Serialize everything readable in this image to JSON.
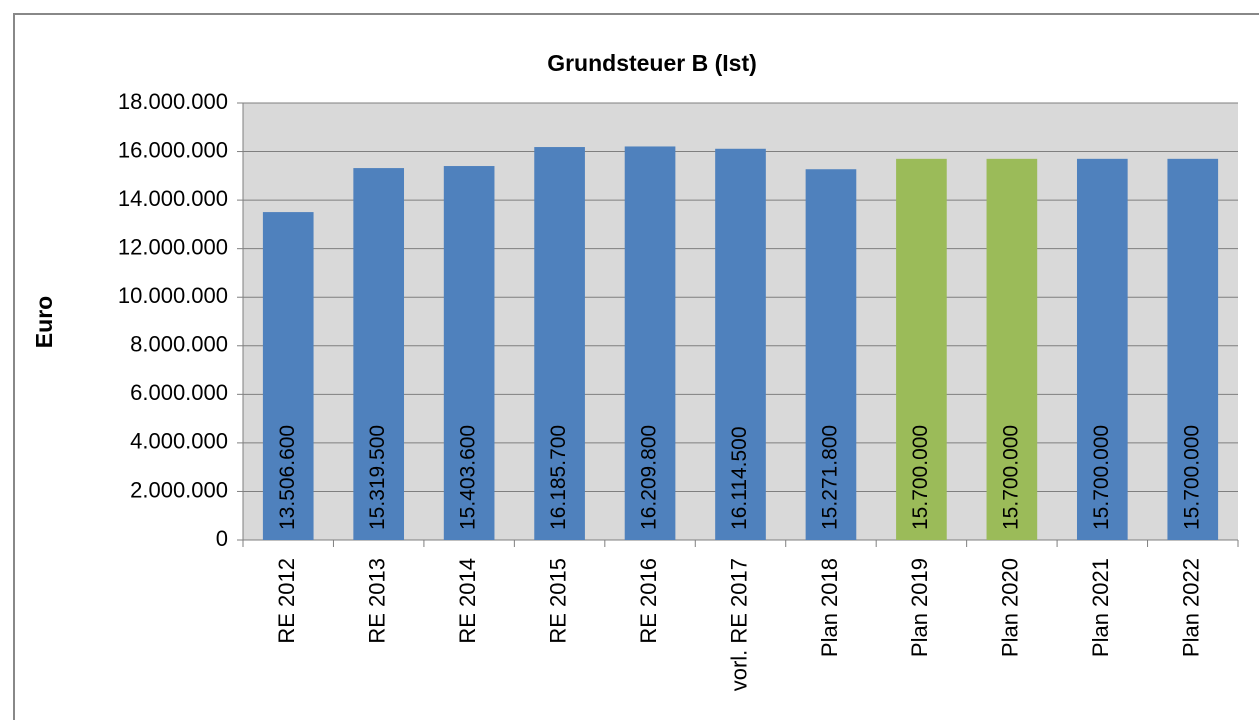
{
  "chart_data": {
    "type": "bar",
    "title": "Grundsteuer B (Ist)",
    "y_label": "Euro",
    "categories": [
      "RE 2012",
      "RE 2013",
      "RE 2014",
      "RE 2015",
      "RE 2016",
      "vorl. RE 2017",
      "Plan 2018",
      "Plan 2019",
      "Plan 2020",
      "Plan 2021",
      "Plan 2022"
    ],
    "values": [
      13506600,
      15319500,
      15403600,
      16185700,
      16209800,
      16114500,
      15271800,
      15700000,
      15700000,
      15700000,
      15700000
    ],
    "value_labels": [
      "13.506.600",
      "15.319.500",
      "15.403.600",
      "16.185.700",
      "16.209.800",
      "16.114.500",
      "15.271.800",
      "15.700.000",
      "15.700.000",
      "15.700.000",
      "15.700.000"
    ],
    "colors": [
      "#4f81bd",
      "#4f81bd",
      "#4f81bd",
      "#4f81bd",
      "#4f81bd",
      "#4f81bd",
      "#4f81bd",
      "#9bbb59",
      "#9bbb59",
      "#4f81bd",
      "#4f81bd"
    ],
    "ylim": [
      0,
      18000000
    ],
    "yticks": [
      0,
      {
        "value": 2000000,
        "label": "2.000.000"
      },
      {
        "value": 4000000,
        "label": "4.000.000"
      },
      {
        "value": 6000000,
        "label": "6.000.000"
      },
      {
        "value": 8000000,
        "label": "8.000.000"
      },
      {
        "value": 10000000,
        "label": "10.000.000"
      },
      {
        "value": 12000000,
        "label": "12.000.000"
      },
      {
        "value": 14000000,
        "label": "14.000.000"
      },
      {
        "value": 16000000,
        "label": "16.000.000"
      },
      {
        "value": 18000000,
        "label": "18.000.000"
      }
    ],
    "grid": true
  }
}
